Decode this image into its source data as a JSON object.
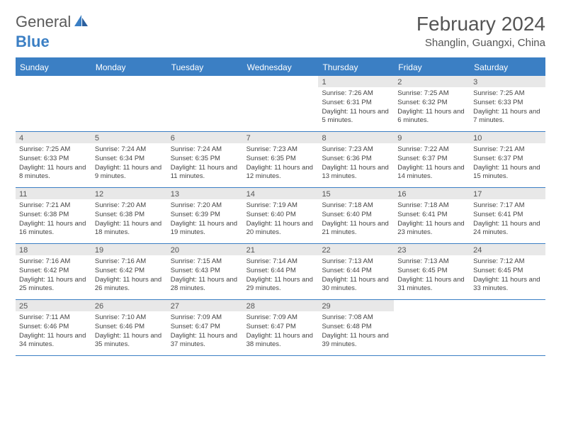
{
  "brand": {
    "part1": "General",
    "part2": "Blue"
  },
  "title": "February 2024",
  "location": "Shanglin, Guangxi, China",
  "header_bg": "#3b7fc4",
  "header_fg": "#ffffff",
  "daynum_bg": "#e8e8e8",
  "text_color": "#444444",
  "weekdays": [
    "Sunday",
    "Monday",
    "Tuesday",
    "Wednesday",
    "Thursday",
    "Friday",
    "Saturday"
  ],
  "weeks": [
    [
      {
        "n": "",
        "sr": "",
        "ss": "",
        "dl": ""
      },
      {
        "n": "",
        "sr": "",
        "ss": "",
        "dl": ""
      },
      {
        "n": "",
        "sr": "",
        "ss": "",
        "dl": ""
      },
      {
        "n": "",
        "sr": "",
        "ss": "",
        "dl": ""
      },
      {
        "n": "1",
        "sr": "Sunrise: 7:26 AM",
        "ss": "Sunset: 6:31 PM",
        "dl": "Daylight: 11 hours and 5 minutes."
      },
      {
        "n": "2",
        "sr": "Sunrise: 7:25 AM",
        "ss": "Sunset: 6:32 PM",
        "dl": "Daylight: 11 hours and 6 minutes."
      },
      {
        "n": "3",
        "sr": "Sunrise: 7:25 AM",
        "ss": "Sunset: 6:33 PM",
        "dl": "Daylight: 11 hours and 7 minutes."
      }
    ],
    [
      {
        "n": "4",
        "sr": "Sunrise: 7:25 AM",
        "ss": "Sunset: 6:33 PM",
        "dl": "Daylight: 11 hours and 8 minutes."
      },
      {
        "n": "5",
        "sr": "Sunrise: 7:24 AM",
        "ss": "Sunset: 6:34 PM",
        "dl": "Daylight: 11 hours and 9 minutes."
      },
      {
        "n": "6",
        "sr": "Sunrise: 7:24 AM",
        "ss": "Sunset: 6:35 PM",
        "dl": "Daylight: 11 hours and 11 minutes."
      },
      {
        "n": "7",
        "sr": "Sunrise: 7:23 AM",
        "ss": "Sunset: 6:35 PM",
        "dl": "Daylight: 11 hours and 12 minutes."
      },
      {
        "n": "8",
        "sr": "Sunrise: 7:23 AM",
        "ss": "Sunset: 6:36 PM",
        "dl": "Daylight: 11 hours and 13 minutes."
      },
      {
        "n": "9",
        "sr": "Sunrise: 7:22 AM",
        "ss": "Sunset: 6:37 PM",
        "dl": "Daylight: 11 hours and 14 minutes."
      },
      {
        "n": "10",
        "sr": "Sunrise: 7:21 AM",
        "ss": "Sunset: 6:37 PM",
        "dl": "Daylight: 11 hours and 15 minutes."
      }
    ],
    [
      {
        "n": "11",
        "sr": "Sunrise: 7:21 AM",
        "ss": "Sunset: 6:38 PM",
        "dl": "Daylight: 11 hours and 16 minutes."
      },
      {
        "n": "12",
        "sr": "Sunrise: 7:20 AM",
        "ss": "Sunset: 6:38 PM",
        "dl": "Daylight: 11 hours and 18 minutes."
      },
      {
        "n": "13",
        "sr": "Sunrise: 7:20 AM",
        "ss": "Sunset: 6:39 PM",
        "dl": "Daylight: 11 hours and 19 minutes."
      },
      {
        "n": "14",
        "sr": "Sunrise: 7:19 AM",
        "ss": "Sunset: 6:40 PM",
        "dl": "Daylight: 11 hours and 20 minutes."
      },
      {
        "n": "15",
        "sr": "Sunrise: 7:18 AM",
        "ss": "Sunset: 6:40 PM",
        "dl": "Daylight: 11 hours and 21 minutes."
      },
      {
        "n": "16",
        "sr": "Sunrise: 7:18 AM",
        "ss": "Sunset: 6:41 PM",
        "dl": "Daylight: 11 hours and 23 minutes."
      },
      {
        "n": "17",
        "sr": "Sunrise: 7:17 AM",
        "ss": "Sunset: 6:41 PM",
        "dl": "Daylight: 11 hours and 24 minutes."
      }
    ],
    [
      {
        "n": "18",
        "sr": "Sunrise: 7:16 AM",
        "ss": "Sunset: 6:42 PM",
        "dl": "Daylight: 11 hours and 25 minutes."
      },
      {
        "n": "19",
        "sr": "Sunrise: 7:16 AM",
        "ss": "Sunset: 6:42 PM",
        "dl": "Daylight: 11 hours and 26 minutes."
      },
      {
        "n": "20",
        "sr": "Sunrise: 7:15 AM",
        "ss": "Sunset: 6:43 PM",
        "dl": "Daylight: 11 hours and 28 minutes."
      },
      {
        "n": "21",
        "sr": "Sunrise: 7:14 AM",
        "ss": "Sunset: 6:44 PM",
        "dl": "Daylight: 11 hours and 29 minutes."
      },
      {
        "n": "22",
        "sr": "Sunrise: 7:13 AM",
        "ss": "Sunset: 6:44 PM",
        "dl": "Daylight: 11 hours and 30 minutes."
      },
      {
        "n": "23",
        "sr": "Sunrise: 7:13 AM",
        "ss": "Sunset: 6:45 PM",
        "dl": "Daylight: 11 hours and 31 minutes."
      },
      {
        "n": "24",
        "sr": "Sunrise: 7:12 AM",
        "ss": "Sunset: 6:45 PM",
        "dl": "Daylight: 11 hours and 33 minutes."
      }
    ],
    [
      {
        "n": "25",
        "sr": "Sunrise: 7:11 AM",
        "ss": "Sunset: 6:46 PM",
        "dl": "Daylight: 11 hours and 34 minutes."
      },
      {
        "n": "26",
        "sr": "Sunrise: 7:10 AM",
        "ss": "Sunset: 6:46 PM",
        "dl": "Daylight: 11 hours and 35 minutes."
      },
      {
        "n": "27",
        "sr": "Sunrise: 7:09 AM",
        "ss": "Sunset: 6:47 PM",
        "dl": "Daylight: 11 hours and 37 minutes."
      },
      {
        "n": "28",
        "sr": "Sunrise: 7:09 AM",
        "ss": "Sunset: 6:47 PM",
        "dl": "Daylight: 11 hours and 38 minutes."
      },
      {
        "n": "29",
        "sr": "Sunrise: 7:08 AM",
        "ss": "Sunset: 6:48 PM",
        "dl": "Daylight: 11 hours and 39 minutes."
      },
      {
        "n": "",
        "sr": "",
        "ss": "",
        "dl": ""
      },
      {
        "n": "",
        "sr": "",
        "ss": "",
        "dl": ""
      }
    ]
  ]
}
